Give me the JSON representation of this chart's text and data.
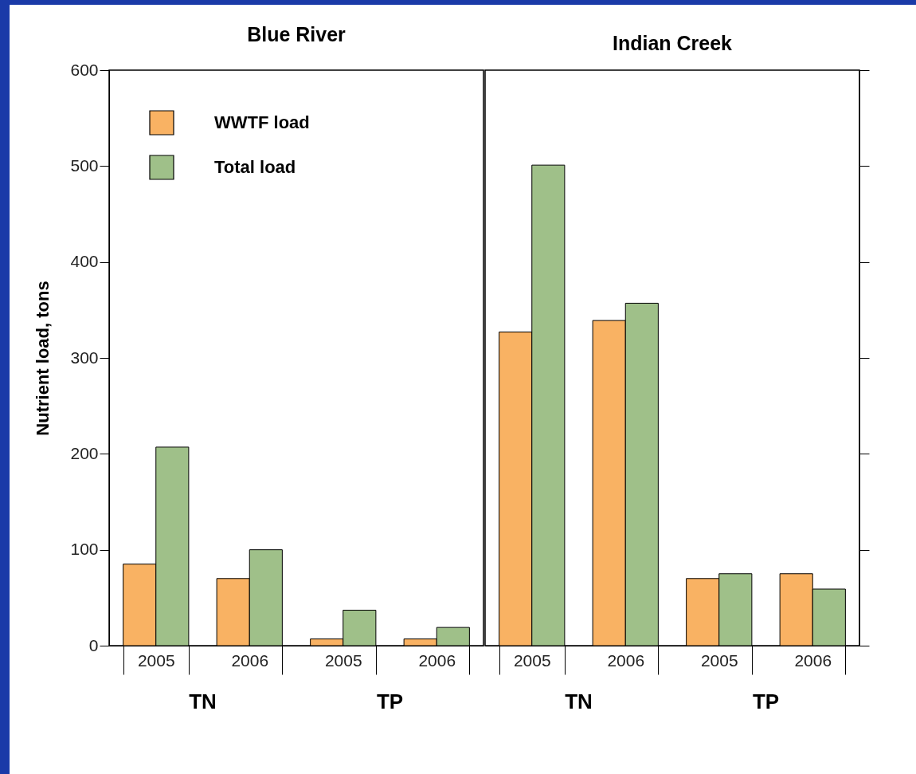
{
  "chart_data": [
    {
      "type": "bar",
      "title": "Blue River",
      "ylabel": "Nutrient load, tons",
      "categories": [
        "2005",
        "2006",
        "2005",
        "2006"
      ],
      "series": [
        {
          "name": "WWTF load",
          "color": "#f9b263",
          "values": [
            85,
            70,
            7,
            7
          ]
        },
        {
          "name": "Total load",
          "color": "#9fc089",
          "values": [
            207,
            100,
            37,
            19
          ]
        }
      ],
      "ylim": [
        0,
        600
      ],
      "yticks": [
        0,
        100,
        200,
        300,
        400,
        500,
        600
      ],
      "legend": "top left",
      "annotations": [
        "TN",
        "TP"
      ]
    },
    {
      "type": "bar",
      "title": "Indian Creek",
      "categories": [
        "2005",
        "2006",
        "2005",
        "2006"
      ],
      "series": [
        {
          "name": "WWTF load",
          "color": "#f9b263",
          "values": [
            327,
            339,
            70,
            75
          ]
        },
        {
          "name": "Total load",
          "color": "#9fc089",
          "values": [
            501,
            357,
            75,
            59
          ]
        }
      ],
      "ylim": [
        0,
        600
      ],
      "yticks": [
        0,
        100,
        200,
        300,
        400,
        500,
        600
      ],
      "tick_labels": "x",
      "annotations": [
        "TN",
        "TP"
      ]
    }
  ]
}
